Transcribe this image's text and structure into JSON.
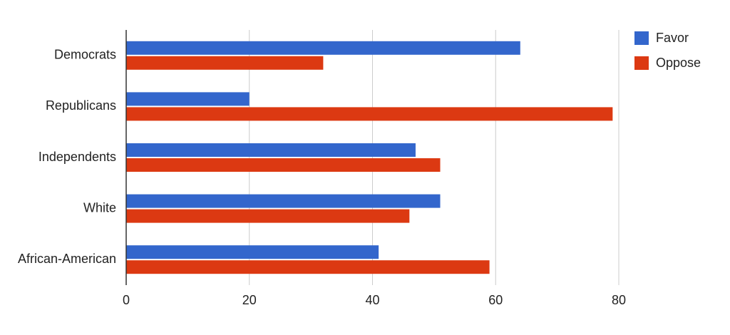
{
  "chart_data": {
    "type": "hbar",
    "categories": [
      "Democrats",
      "Republicans",
      "Independents",
      "White",
      "African-American"
    ],
    "series": [
      {
        "name": "Favor",
        "color": "#3366cc",
        "values": [
          64,
          20,
          47,
          51,
          41
        ]
      },
      {
        "name": "Oppose",
        "color": "#dc3912",
        "values": [
          32,
          79,
          51,
          46,
          59
        ]
      }
    ],
    "xlim": [
      0,
      80
    ],
    "xticks": [
      0,
      20,
      40,
      60,
      80
    ],
    "grid": true,
    "legend": "top-right"
  }
}
